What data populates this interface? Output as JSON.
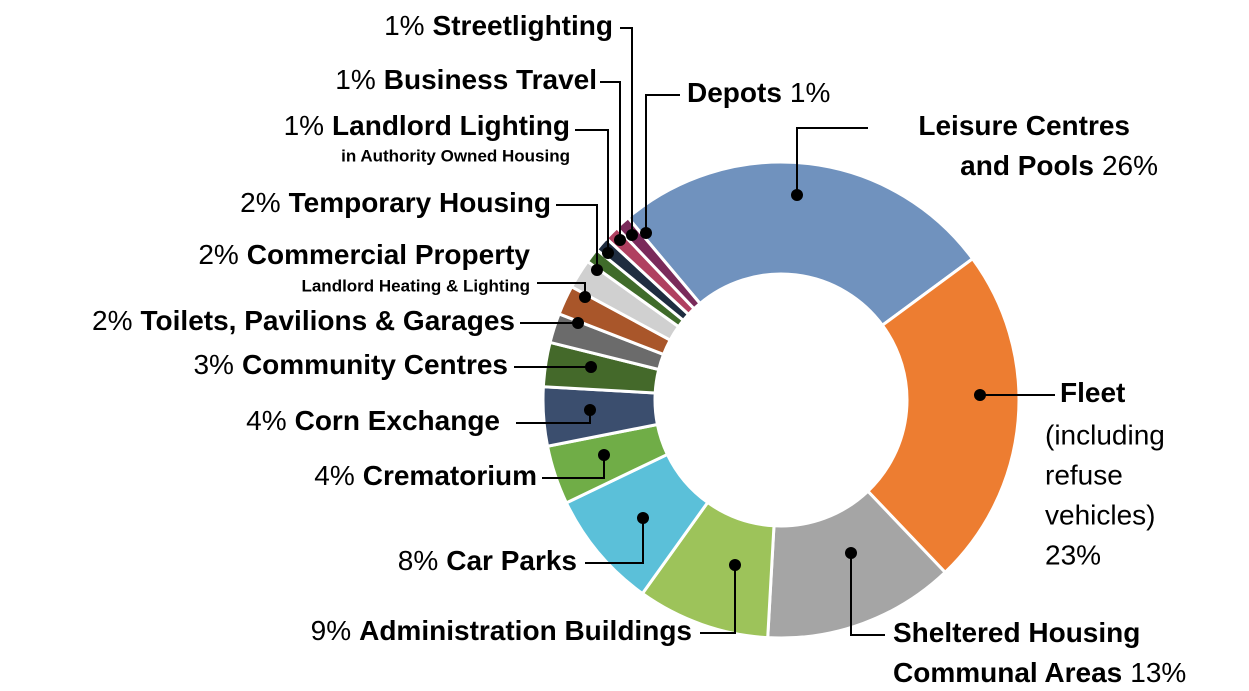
{
  "chart_data": {
    "type": "donut",
    "categories": [
      [
        "Leisure Centres",
        "and Pools"
      ],
      [
        "Fleet"
      ],
      [
        "Sheltered Housing",
        "Communal Areas"
      ],
      [
        "Administration Buildings"
      ],
      [
        "Car Parks"
      ],
      [
        "Crematorium"
      ],
      [
        "Corn Exchange"
      ],
      [
        "Community Centres"
      ],
      [
        "Toilets, Pavilions & Garages"
      ],
      [
        "Commercial Property"
      ],
      [
        "Temporary Housing"
      ],
      [
        "Landlord Lighting"
      ],
      [
        "Business Travel"
      ],
      [
        "Streetlighting"
      ],
      [
        "Depots"
      ]
    ],
    "sublabels": [
      null,
      [
        "(including",
        "refuse",
        "vehicles)"
      ],
      null,
      null,
      null,
      null,
      null,
      null,
      null,
      [
        "Landlord Heating & Lighting"
      ],
      null,
      [
        "in Authority Owned Housing"
      ],
      null,
      null,
      null
    ],
    "values": [
      26,
      23,
      13,
      9,
      8,
      4,
      4,
      3,
      2,
      2,
      2,
      1,
      1,
      1,
      1
    ],
    "value_labels": [
      "26%",
      "23%",
      "13%",
      "9%",
      "8%",
      "4%",
      "4%",
      "3%",
      "2%",
      "2%",
      "2%",
      "1%",
      "1%",
      "1%",
      "1%"
    ],
    "colors": [
      "#7092be",
      "#ed7d31",
      "#a5a5a5",
      "#9dc35a",
      "#5bc0d9",
      "#70ad47",
      "#3b4e6e",
      "#44692a",
      "#6b6b6b",
      "#a9562a",
      "#d0d0d0",
      "#3f6b2a",
      "#1f2d40",
      "#b04060",
      "#7a2a5a"
    ]
  }
}
